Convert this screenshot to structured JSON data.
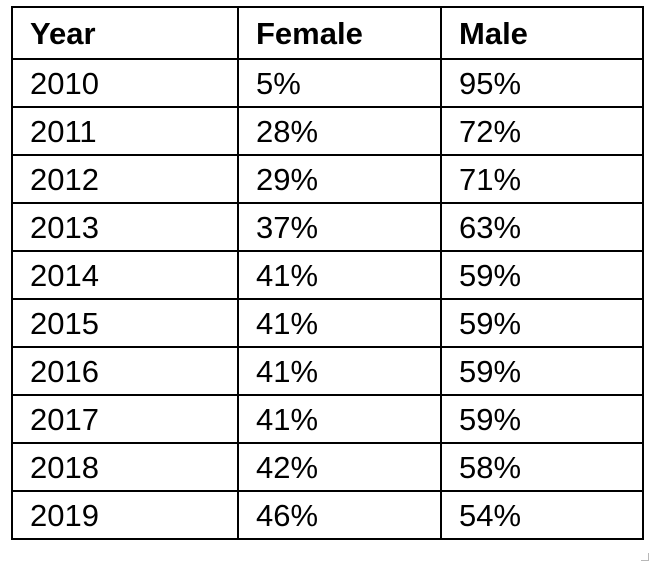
{
  "table": {
    "headers": [
      "Year",
      "Female",
      "Male"
    ],
    "rows": [
      [
        "2010",
        "5%",
        "95%"
      ],
      [
        "2011",
        "28%",
        "72%"
      ],
      [
        "2012",
        "29%",
        "71%"
      ],
      [
        "2013",
        "37%",
        "63%"
      ],
      [
        "2014",
        "41%",
        "59%"
      ],
      [
        "2015",
        "41%",
        "59%"
      ],
      [
        "2016",
        "41%",
        "59%"
      ],
      [
        "2017",
        "41%",
        "59%"
      ],
      [
        "2018",
        "42%",
        "58%"
      ],
      [
        "2019",
        "46%",
        "54%"
      ]
    ]
  }
}
